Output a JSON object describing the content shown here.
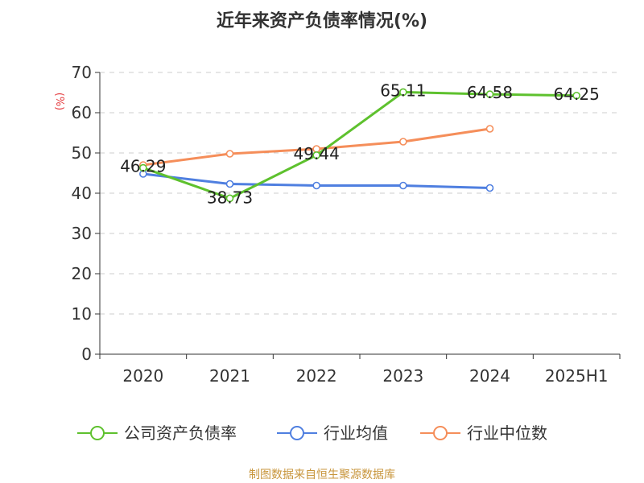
{
  "title": "近年来资产负债率情况(%)",
  "source": "制图数据来自恒生聚源数据库",
  "chart_data": {
    "type": "line",
    "ylabel": "(%)",
    "ylim": [
      0,
      70
    ],
    "yticks": [
      0,
      10,
      20,
      30,
      40,
      50,
      60,
      70
    ],
    "categories": [
      "2020",
      "2021",
      "2022",
      "2023",
      "2024",
      "2025H1"
    ],
    "grid": true,
    "legend_position": "bottom",
    "series": [
      {
        "name": "公司资产负债率",
        "color": "#5ec12e",
        "values": [
          46.29,
          38.73,
          49.44,
          65.11,
          64.58,
          64.25
        ],
        "labels": [
          "46.29",
          "38.73",
          "49.44",
          "65.11",
          "64.58",
          "64.25"
        ]
      },
      {
        "name": "行业均值",
        "color": "#4f7fe0",
        "values": [
          44.8,
          42.3,
          41.9,
          41.9,
          41.3,
          null
        ]
      },
      {
        "name": "行业中位数",
        "color": "#f58e5a",
        "values": [
          47.0,
          49.8,
          51.0,
          52.8,
          56.0,
          null
        ]
      }
    ]
  }
}
